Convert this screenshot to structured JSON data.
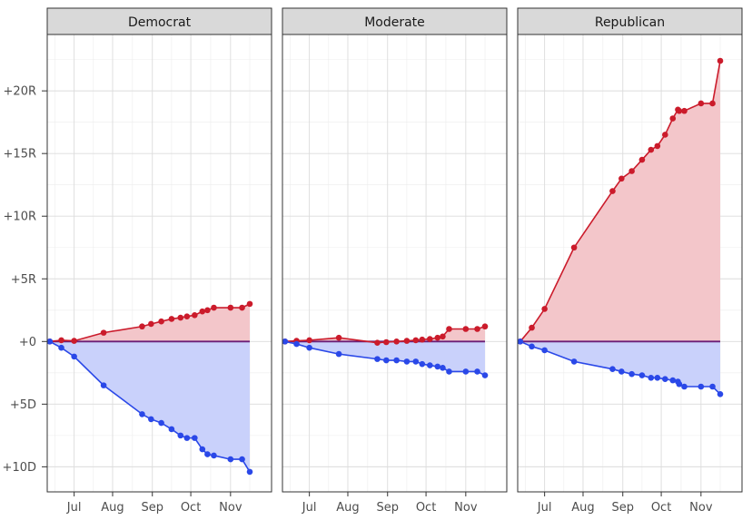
{
  "chart_data": {
    "type": "area",
    "grid": true,
    "y_tick_labels": [
      "+10D",
      "+5D",
      "+0",
      "+5R",
      "+10R",
      "+15R",
      "+20R"
    ],
    "y_tick_values": [
      -10,
      -5,
      0,
      5,
      10,
      15,
      20
    ],
    "x_tick_labels": [
      "Jul",
      "Aug",
      "Sep",
      "Oct",
      "Nov"
    ],
    "x_tick_values": [
      19,
      49,
      80,
      110,
      141
    ],
    "xlim": [
      -2,
      173
    ],
    "ylim": [
      -12,
      24.5
    ],
    "colors": {
      "red": "#cb1b2b",
      "red_fill": "#f3c6ca",
      "blue": "#2a48e8",
      "blue_fill": "#c9d1fb",
      "zero_line": "#6b1f77",
      "strip_bg": "#d9d9d9",
      "panel_border": "#333333"
    },
    "panels": [
      {
        "label": "Democrat",
        "red": {
          "x": [
            0,
            9,
            19,
            42,
            72,
            79,
            87,
            95,
            102,
            107,
            113,
            119,
            123,
            128,
            141,
            150,
            156
          ],
          "y": [
            0,
            0.1,
            0.05,
            0.7,
            1.2,
            1.4,
            1.6,
            1.8,
            1.9,
            2.0,
            2.1,
            2.4,
            2.5,
            2.7,
            2.7,
            2.7,
            3.0
          ]
        },
        "blue": {
          "x": [
            0,
            9,
            19,
            42,
            72,
            79,
            87,
            95,
            102,
            107,
            113,
            119,
            123,
            128,
            141,
            150,
            156
          ],
          "y": [
            0,
            -0.5,
            -1.2,
            -3.5,
            -5.8,
            -6.2,
            -6.5,
            -7.0,
            -7.5,
            -7.7,
            -7.7,
            -8.6,
            -9.0,
            -9.1,
            -9.4,
            -9.4,
            -10.4
          ]
        }
      },
      {
        "label": "Moderate",
        "red": {
          "x": [
            0,
            9,
            19,
            42,
            72,
            79,
            87,
            95,
            102,
            107,
            113,
            119,
            123,
            128,
            141,
            150,
            156
          ],
          "y": [
            0,
            0.05,
            0.1,
            0.3,
            -0.1,
            -0.05,
            0.0,
            0.05,
            0.1,
            0.15,
            0.2,
            0.3,
            0.4,
            1.0,
            1.0,
            1.0,
            1.2
          ]
        },
        "blue": {
          "x": [
            0,
            9,
            19,
            42,
            72,
            79,
            87,
            95,
            102,
            107,
            113,
            119,
            123,
            128,
            141,
            150,
            156
          ],
          "y": [
            0,
            -0.2,
            -0.5,
            -1.0,
            -1.4,
            -1.5,
            -1.5,
            -1.6,
            -1.6,
            -1.8,
            -1.9,
            -2.0,
            -2.1,
            -2.4,
            -2.4,
            -2.4,
            -2.7
          ]
        }
      },
      {
        "label": "Republican",
        "red": {
          "x": [
            0,
            9,
            19,
            42,
            72,
            79,
            87,
            95,
            102,
            107,
            113,
            119,
            123,
            124,
            128,
            141,
            150,
            156
          ],
          "y": [
            0,
            1.1,
            2.6,
            7.5,
            12.0,
            13.0,
            13.6,
            14.5,
            15.3,
            15.6,
            16.5,
            17.8,
            18.5,
            18.4,
            18.4,
            19.0,
            19.0,
            22.4
          ]
        },
        "blue": {
          "x": [
            0,
            9,
            19,
            42,
            72,
            79,
            87,
            95,
            102,
            107,
            113,
            119,
            123,
            124,
            128,
            141,
            150,
            156
          ],
          "y": [
            0,
            -0.4,
            -0.7,
            -1.6,
            -2.2,
            -2.4,
            -2.6,
            -2.7,
            -2.9,
            -2.9,
            -3.0,
            -3.1,
            -3.2,
            -3.4,
            -3.6,
            -3.6,
            -3.6,
            -4.2
          ]
        }
      }
    ]
  }
}
